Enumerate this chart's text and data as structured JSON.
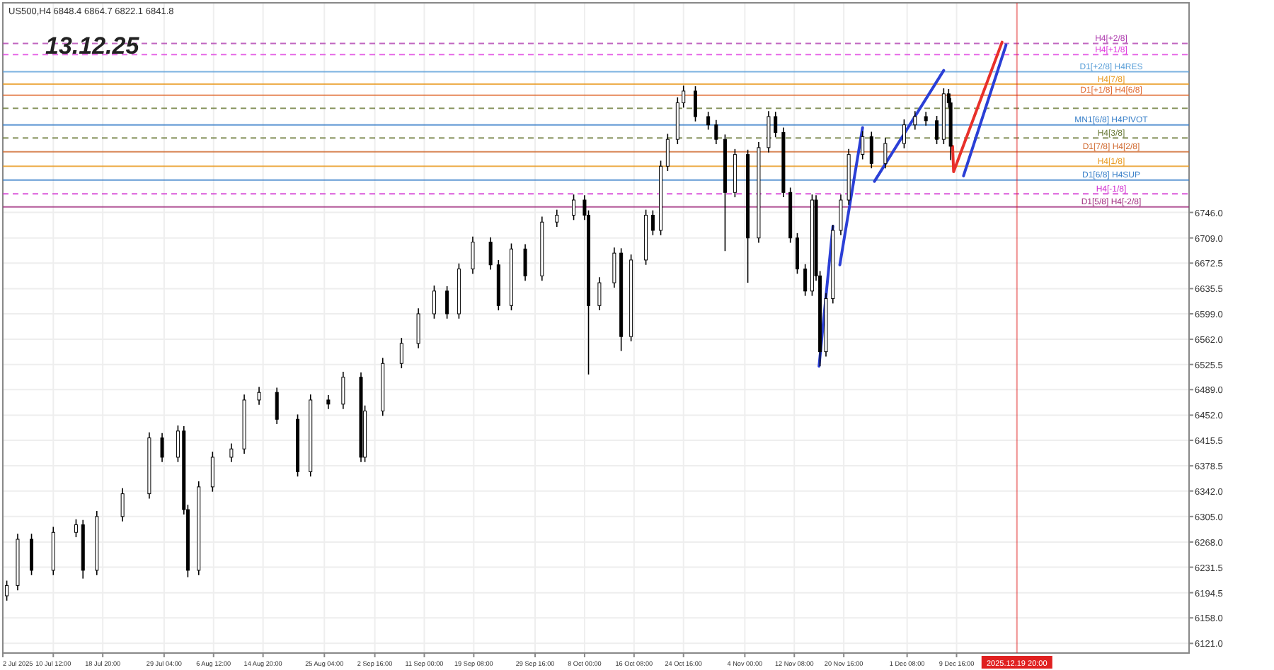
{
  "chart_data": {
    "type": "candlestick",
    "title": "13.12.25",
    "subtitle": "US500,H4  6848.4 6864.7 6822.1 6841.8",
    "color": "#000000",
    "x": [
      "2025-07-02T16:00",
      "2025-07-04T12:00",
      "2025-07-06T20:00",
      "2025-07-10T12:00",
      "2025-07-14T08:00",
      "2025-07-15T12:00",
      "2025-07-17T20:00",
      "2025-07-22T04:00",
      "2025-07-26T16:00",
      "2025-07-28T20:00",
      "2025-07-31T12:00",
      "2025-08-01T12:00",
      "2025-08-02T04:00",
      "2025-08-04T00:00",
      "2025-08-06T08:00",
      "2025-08-09T12:00",
      "2025-08-11T16:00",
      "2025-08-14T04:00",
      "2025-08-17T04:00",
      "2025-08-20T16:00",
      "2025-08-22T20:00",
      "2025-08-25T20:00",
      "2025-08-28T08:00",
      "2025-08-31T08:00",
      "2025-09-01T00:00",
      "2025-09-04T00:00",
      "2025-09-07T04:00",
      "2025-09-10T00:00",
      "2025-09-12T16:00",
      "2025-09-14T20:00",
      "2025-09-16T20:00",
      "2025-09-19T04:00",
      "2025-09-22T04:00",
      "2025-09-23T12:00",
      "2025-09-25T16:00",
      "2025-09-28T00:00",
      "2025-09-30T20:00",
      "2025-10-03T08:00",
      "2025-10-06T04:00",
      "2025-10-08T00:00",
      "2025-10-08T16:00",
      "2025-10-10T12:00",
      "2025-10-13T00:00",
      "2025-10-14T04:00",
      "2025-10-15T20:00",
      "2025-10-18T08:00",
      "2025-10-19T12:00",
      "2025-10-20T20:00",
      "2025-10-22T00:00",
      "2025-10-23T16:00",
      "2025-10-24T16:00",
      "2025-10-26T16:00",
      "2025-10-28T20:00",
      "2025-10-30T04:00",
      "2025-10-31T16:00",
      "2025-11-02T08:00",
      "2025-11-04T12:00",
      "2025-11-06T08:00",
      "2025-11-08T00:00",
      "2025-11-09T04:00",
      "2025-11-10T12:00",
      "2025-11-11T16:00",
      "2025-11-12T20:00",
      "2025-11-14T04:00",
      "2025-11-15T08:00",
      "2025-11-16T00:00",
      "2025-11-16T16:00",
      "2025-11-17T16:00",
      "2025-11-18T20:00",
      "2025-11-20T04:00",
      "2025-11-21T12:00",
      "2025-11-23T20:00",
      "2025-11-25T08:00",
      "2025-11-27T16:00",
      "2025-11-30T20:00",
      "2025-12-02T16:00",
      "2025-12-04T12:00",
      "2025-12-06T08:00",
      "2025-12-07T12:00",
      "2025-12-08T08:00",
      "2025-12-08T16:00"
    ],
    "ohlc": [
      [
        6190,
        6212,
        6183,
        6205
      ],
      [
        6205,
        6280,
        6198,
        6272
      ],
      [
        6272,
        6280,
        6220,
        6227
      ],
      [
        6227,
        6290,
        6220,
        6282
      ],
      [
        6282,
        6301,
        6275,
        6293
      ],
      [
        6293,
        6300,
        6215,
        6227
      ],
      [
        6227,
        6313,
        6220,
        6305
      ],
      [
        6305,
        6346,
        6298,
        6338
      ],
      [
        6338,
        6427,
        6331,
        6419
      ],
      [
        6419,
        6426,
        6384,
        6391
      ],
      [
        6391,
        6437,
        6384,
        6429
      ],
      [
        6429,
        6436,
        6308,
        6315
      ],
      [
        6315,
        6322,
        6217,
        6227
      ],
      [
        6227,
        6356,
        6220,
        6348
      ],
      [
        6348,
        6399,
        6341,
        6391
      ],
      [
        6391,
        6411,
        6384,
        6403
      ],
      [
        6403,
        6482,
        6396,
        6474
      ],
      [
        6474,
        6493,
        6467,
        6485
      ],
      [
        6485,
        6492,
        6439,
        6446
      ],
      [
        6446,
        6453,
        6363,
        6370
      ],
      [
        6370,
        6482,
        6363,
        6474
      ],
      [
        6474,
        6481,
        6461,
        6468
      ],
      [
        6468,
        6515,
        6461,
        6507
      ],
      [
        6507,
        6514,
        6384,
        6391
      ],
      [
        6391,
        6466,
        6384,
        6458
      ],
      [
        6458,
        6535,
        6451,
        6527
      ],
      [
        6527,
        6564,
        6520,
        6556
      ],
      [
        6556,
        6607,
        6549,
        6599
      ],
      [
        6599,
        6640,
        6592,
        6632
      ],
      [
        6632,
        6639,
        6592,
        6599
      ],
      [
        6599,
        6672,
        6592,
        6664
      ],
      [
        6664,
        6711,
        6657,
        6703
      ],
      [
        6703,
        6710,
        6663,
        6670
      ],
      [
        6670,
        6677,
        6604,
        6611
      ],
      [
        6611,
        6701,
        6604,
        6693
      ],
      [
        6693,
        6700,
        6647,
        6654
      ],
      [
        6654,
        6740,
        6647,
        6732
      ],
      [
        6732,
        6750,
        6725,
        6742
      ],
      [
        6742,
        6772,
        6735,
        6764
      ],
      [
        6764,
        6771,
        6735,
        6742
      ],
      [
        6742,
        6749,
        6511,
        6611
      ],
      [
        6611,
        6652,
        6604,
        6644
      ],
      [
        6644,
        6695,
        6637,
        6687
      ],
      [
        6687,
        6694,
        6545,
        6566
      ],
      [
        6566,
        6685,
        6559,
        6677
      ],
      [
        6677,
        6750,
        6670,
        6742
      ],
      [
        6742,
        6749,
        6713,
        6720
      ],
      [
        6720,
        6821,
        6713,
        6813
      ],
      [
        6813,
        6860,
        6806,
        6852
      ],
      [
        6852,
        6913,
        6845,
        6905
      ],
      [
        6905,
        6930,
        6898,
        6922
      ],
      [
        6922,
        6929,
        6878,
        6885
      ],
      [
        6885,
        6892,
        6866,
        6873
      ],
      [
        6873,
        6880,
        6845,
        6852
      ],
      [
        6852,
        6859,
        6690,
        6775
      ],
      [
        6775,
        6838,
        6768,
        6830
      ],
      [
        6830,
        6837,
        6644,
        6709
      ],
      [
        6709,
        6848,
        6702,
        6840
      ],
      [
        6840,
        6893,
        6833,
        6885
      ],
      [
        6885,
        6892,
        6855,
        6862
      ],
      [
        6862,
        6869,
        6768,
        6775
      ],
      [
        6775,
        6782,
        6702,
        6709
      ],
      [
        6709,
        6716,
        6657,
        6664
      ],
      [
        6664,
        6671,
        6625,
        6632
      ],
      [
        6632,
        6772,
        6625,
        6764
      ],
      [
        6764,
        6771,
        6647,
        6654
      ],
      [
        6654,
        6661,
        6523,
        6544
      ],
      [
        6544,
        6629,
        6537,
        6621
      ],
      [
        6621,
        6728,
        6614,
        6720
      ],
      [
        6720,
        6772,
        6713,
        6764
      ],
      [
        6764,
        6838,
        6757,
        6830
      ],
      [
        6830,
        6864,
        6823,
        6856
      ],
      [
        6856,
        6863,
        6810,
        6817
      ],
      [
        6817,
        6854,
        6810,
        6846
      ],
      [
        6846,
        6881,
        6839,
        6873
      ],
      [
        6873,
        6893,
        6866,
        6885
      ],
      [
        6885,
        6892,
        6872,
        6879
      ],
      [
        6879,
        6886,
        6845,
        6852
      ],
      [
        6852,
        6926,
        6845,
        6918
      ],
      [
        6918,
        6925,
        6898,
        6905
      ],
      [
        6905,
        6912,
        6822,
        6842
      ]
    ],
    "series": [
      {
        "type": "line",
        "color": "#2b3fd6",
        "x": [
          "2025-11-16T12:00",
          "2025-11-18T20:00"
        ],
        "values": [
          6523,
          6726
        ]
      },
      {
        "type": "line",
        "color": "#2b3fd6",
        "x": [
          "2025-11-20T00:00",
          "2025-11-23T20:00"
        ],
        "values": [
          6670,
          6869
        ]
      },
      {
        "type": "line",
        "color": "#2b3fd6",
        "x": [
          "2025-11-25T20:00",
          "2025-12-07T12:00"
        ],
        "values": [
          6791,
          6952
        ]
      },
      {
        "type": "line",
        "color": "#2b3fd6",
        "x": [
          "2025-12-10T20:00",
          "2025-12-18T00:00"
        ],
        "values": [
          6799,
          6989
        ]
      },
      {
        "type": "line",
        "color": "#e8302a",
        "x": [
          "2025-12-09T00:00",
          "2025-12-09T04:00",
          "2025-12-17T08:00"
        ],
        "values": [
          6842,
          6805,
          6993
        ]
      }
    ],
    "xlim": [
      "2025-07-02T00:00",
      "2026-01-17T20:00"
    ],
    "xticks": [
      {
        "value": "2025-07-02T00:00",
        "label": "2 Jul 2025"
      },
      {
        "value": "2025-07-10T12:00",
        "label": "10 Jul 12:00"
      },
      {
        "value": "2025-07-18T20:00",
        "label": "18 Jul 20:00"
      },
      {
        "value": "2025-07-29T04:00",
        "label": "29 Jul 04:00"
      },
      {
        "value": "2025-08-06T12:00",
        "label": "6 Aug 12:00"
      },
      {
        "value": "2025-08-14T20:00",
        "label": "14 Aug 20:00"
      },
      {
        "value": "2025-08-25T04:00",
        "label": "25 Aug 04:00"
      },
      {
        "value": "2025-09-02T16:00",
        "label": "2 Sep 16:00"
      },
      {
        "value": "2025-09-11T00:00",
        "label": "11 Sep 00:00"
      },
      {
        "value": "2025-09-19T08:00",
        "label": "19 Sep 08:00"
      },
      {
        "value": "2025-09-29T16:00",
        "label": "29 Sep 16:00"
      },
      {
        "value": "2025-10-08T00:00",
        "label": "8 Oct 00:00"
      },
      {
        "value": "2025-10-16T08:00",
        "label": "16 Oct 08:00"
      },
      {
        "value": "2025-10-24T16:00",
        "label": "24 Oct 16:00"
      },
      {
        "value": "2025-11-04T00:00",
        "label": "4 Nov 00:00"
      },
      {
        "value": "2025-11-12T08:00",
        "label": "12 Nov 08:00"
      },
      {
        "value": "2025-11-20T16:00",
        "label": "20 Nov 16:00"
      },
      {
        "value": "2025-12-01T08:00",
        "label": "1 Dec 08:00"
      },
      {
        "value": "2025-12-09T16:00",
        "label": "9 Dec 16:00"
      }
    ],
    "ylim": [
      6107,
      7050
    ],
    "yticks": [
      {
        "value": 6121,
        "label": "6121.0"
      },
      {
        "value": 6158,
        "label": "6158.0"
      },
      {
        "value": 6194.5,
        "label": "6194.5"
      },
      {
        "value": 6231.5,
        "label": "6231.5"
      },
      {
        "value": 6268,
        "label": "6268.0"
      },
      {
        "value": 6305,
        "label": "6305.0"
      },
      {
        "value": 6342,
        "label": "6342.0"
      },
      {
        "value": 6378.5,
        "label": "6378.5"
      },
      {
        "value": 6415.5,
        "label": "6415.5"
      },
      {
        "value": 6452,
        "label": "6452.0"
      },
      {
        "value": 6489,
        "label": "6489.0"
      },
      {
        "value": 6525.5,
        "label": "6525.5"
      },
      {
        "value": 6562,
        "label": "6562.0"
      },
      {
        "value": 6599,
        "label": "6599.0"
      },
      {
        "value": 6635.5,
        "label": "6635.5"
      },
      {
        "value": 6672.5,
        "label": "6672.5"
      },
      {
        "value": 6709,
        "label": "6709.0"
      },
      {
        "value": 6746,
        "label": "6746.0"
      }
    ],
    "grid": true,
    "ref_lines": [
      {
        "axis": "y",
        "value": 6991,
        "label": "H4[+2/8]",
        "color": "#b040b0",
        "line_style": "dashed"
      },
      {
        "axis": "y",
        "value": 6975,
        "label": "H4[+1/8]",
        "color": "#e040e0",
        "line_style": "dashed"
      },
      {
        "axis": "y",
        "value": 6950,
        "label": "D1[+2/8] H4RES",
        "color": "#5a9fd8",
        "line_style": "solid"
      },
      {
        "axis": "y",
        "value": 6932,
        "label": "H4[7/8]",
        "color": "#e89a20",
        "line_style": "solid"
      },
      {
        "axis": "y",
        "value": 6916,
        "label": "D1[+1/8] H4[6/8]",
        "color": "#e06a30",
        "line_style": "solid"
      },
      {
        "axis": "y",
        "value": 6897,
        "label": null,
        "color": "#6b7b3a",
        "line_style": "dashed"
      },
      {
        "axis": "y",
        "value": 6873,
        "label": "MN1[6/8] H4PIVOT",
        "color": "#3a80c9",
        "line_style": "solid"
      },
      {
        "axis": "y",
        "value": 6854,
        "label": "H4[3/8]",
        "color": "#6b7b3a",
        "line_style": "dashed"
      },
      {
        "axis": "y",
        "value": 6834,
        "label": "D1[7/8] H4[2/8]",
        "color": "#d06a30",
        "line_style": "solid"
      },
      {
        "axis": "y",
        "value": 6813,
        "label": "H4[1/8]",
        "color": "#e89a20",
        "line_style": "solid"
      },
      {
        "axis": "y",
        "value": 6793,
        "label": "D1[6/8] H4SUP",
        "color": "#3a80c9",
        "line_style": "solid"
      },
      {
        "axis": "y",
        "value": 6773,
        "label": "H4[-1/8]",
        "color": "#d030d0",
        "line_style": "dashed"
      },
      {
        "axis": "y",
        "value": 6754,
        "label": "D1[5/8] H4[-2/8]",
        "color": "#a03080",
        "line_style": "solid"
      },
      {
        "axis": "x",
        "value": "2025-12-19T20:00",
        "label": "2025.12.19 20:00",
        "color": "#e02020",
        "line_style": "solid"
      }
    ]
  }
}
